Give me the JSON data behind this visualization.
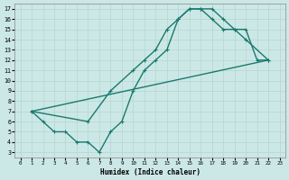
{
  "xlabel": "Humidex (Indice chaleur)",
  "xlim": [
    -0.5,
    23.5
  ],
  "ylim": [
    2.5,
    17.5
  ],
  "xticks": [
    0,
    1,
    2,
    3,
    4,
    5,
    6,
    7,
    8,
    9,
    10,
    11,
    12,
    13,
    14,
    15,
    16,
    17,
    18,
    19,
    20,
    21,
    22,
    23
  ],
  "yticks": [
    3,
    4,
    5,
    6,
    7,
    8,
    9,
    10,
    11,
    12,
    13,
    14,
    15,
    16,
    17
  ],
  "bg_color": "#cce8e6",
  "grid_color": "#b8d8d4",
  "line_color": "#1a7a6e",
  "line_width": 1.0,
  "marker_size": 3.0,
  "curve1_x": [
    1,
    2,
    3,
    4,
    5,
    6,
    7,
    8,
    9,
    10,
    11,
    12,
    13,
    14,
    15,
    16,
    17,
    18,
    19,
    20,
    21,
    22
  ],
  "curve1_y": [
    7,
    6,
    5,
    5,
    4,
    4,
    3,
    5,
    6,
    9,
    11,
    12,
    13,
    16,
    17,
    17,
    17,
    16,
    15,
    15,
    12,
    12
  ],
  "curve2_x": [
    1,
    6,
    8,
    10,
    11,
    12,
    13,
    14,
    15,
    16,
    17,
    18,
    19,
    20,
    22
  ],
  "curve2_y": [
    7,
    6,
    9,
    11,
    12,
    13,
    15,
    16,
    17,
    17,
    16,
    15,
    15,
    14,
    12
  ],
  "curve3_x": [
    1,
    22
  ],
  "curve3_y": [
    7,
    12
  ]
}
